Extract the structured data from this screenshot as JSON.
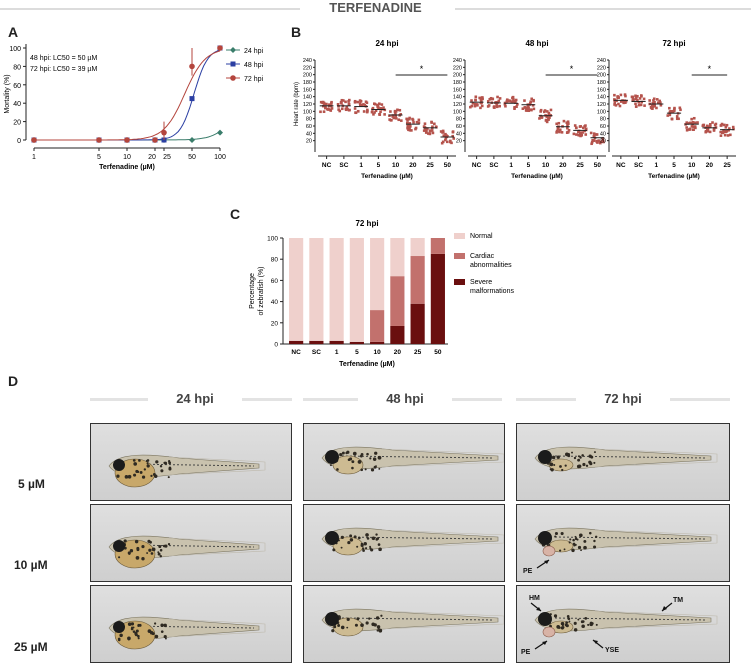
{
  "figure_title": "TERFENADINE",
  "panel_labels": {
    "a": "A",
    "b": "B",
    "c": "C",
    "d": "D"
  },
  "colors": {
    "hpi24": "#3a7d6b",
    "hpi48": "#2b3fa3",
    "hpi72": "#b4453d",
    "scatter": "#b5534c",
    "normal": "#efd0cc",
    "cardiac": "#c2716d",
    "severe": "#6a0f0f"
  },
  "chart_data": [
    {
      "id": "A",
      "type": "line",
      "xlabel": "Terfenadine (µM)",
      "ylabel": "Mortality (%)",
      "xscale": "log",
      "xticks": [
        "1",
        "5",
        "10",
        "20",
        "25",
        "50",
        "100"
      ],
      "xtick_values": [
        1,
        5,
        10,
        20,
        25,
        50,
        100
      ],
      "yticks": [
        0,
        20,
        40,
        60,
        80,
        100
      ],
      "ylim": [
        0,
        100
      ],
      "annotations": [
        "48 hpi: LC50 = 50 µM",
        "72 hpi: LC50 = 39 µM"
      ],
      "legend": [
        "24 hpi",
        "48 hpi",
        "72 hpi"
      ],
      "series": [
        {
          "name": "24 hpi",
          "x": [
            1,
            5,
            10,
            20,
            25,
            50,
            100
          ],
          "y": [
            0,
            0,
            0,
            0,
            0,
            0,
            8
          ]
        },
        {
          "name": "48 hpi",
          "x": [
            1,
            5,
            10,
            20,
            25,
            50,
            100
          ],
          "y": [
            0,
            0,
            0,
            0,
            0,
            45,
            100
          ]
        },
        {
          "name": "72 hpi",
          "x": [
            1,
            5,
            10,
            20,
            25,
            50,
            100
          ],
          "y": [
            0,
            0,
            0,
            0,
            8,
            80,
            100
          ]
        }
      ]
    },
    {
      "id": "B",
      "type": "scatter",
      "ylabel": "Heart rate (bpm)",
      "xlabel": "Terfenadine (µM)",
      "yticks": [
        20,
        40,
        60,
        80,
        100,
        120,
        140,
        160,
        180,
        200,
        220,
        240
      ],
      "ylim": [
        0,
        240
      ],
      "subplots": [
        {
          "title": "24 hpi",
          "categories": [
            "NC",
            "SC",
            "1",
            "5",
            "10",
            "20",
            "25",
            "50"
          ],
          "means": [
            115,
            115,
            113,
            105,
            90,
            65,
            55,
            30
          ],
          "significance": "*",
          "sig_from": "10",
          "sig_to": "50"
        },
        {
          "title": "48 hpi",
          "categories": [
            "NC",
            "SC",
            "1",
            "5",
            "10",
            "20",
            "25",
            "50"
          ],
          "means": [
            125,
            123,
            122,
            118,
            88,
            58,
            48,
            28
          ],
          "significance": "*",
          "sig_from": "10",
          "sig_to": "50"
        },
        {
          "title": "72 hpi",
          "categories": [
            "NC",
            "SC",
            "1",
            "5",
            "10",
            "20",
            "25"
          ],
          "means": [
            130,
            127,
            120,
            95,
            65,
            55,
            50
          ],
          "significance": "*",
          "sig_from": "10",
          "sig_to": "25"
        }
      ]
    },
    {
      "id": "C",
      "type": "bar",
      "title": "72 hpi",
      "xlabel": "Terfenadine (µM)",
      "ylabel": "Percentage of zebrafish (%)",
      "ylim": [
        0,
        100
      ],
      "yticks": [
        0,
        20,
        40,
        60,
        80,
        100
      ],
      "categories": [
        "NC",
        "SC",
        "1",
        "5",
        "10",
        "20",
        "25",
        "50"
      ],
      "series": [
        {
          "name": "Severe malformations",
          "values": [
            3,
            3,
            3,
            2,
            2,
            17,
            38,
            85
          ]
        },
        {
          "name": "Cardiac abnormalities",
          "values": [
            0,
            0,
            0,
            0,
            30,
            47,
            45,
            15
          ]
        },
        {
          "name": "Normal",
          "values": [
            97,
            97,
            97,
            98,
            68,
            36,
            17,
            0
          ]
        }
      ],
      "legend": [
        "Normal",
        "Cardiac abnormalities",
        "Severe malformations"
      ]
    }
  ],
  "panel_d": {
    "columns": [
      "24 hpi",
      "48 hpi",
      "72 hpi"
    ],
    "rows": [
      "5 µM",
      "10 µM",
      "25 µM"
    ],
    "annotations": {
      "pe": "PE",
      "hm": "HM",
      "tm": "TM",
      "yse": "YSE"
    }
  }
}
